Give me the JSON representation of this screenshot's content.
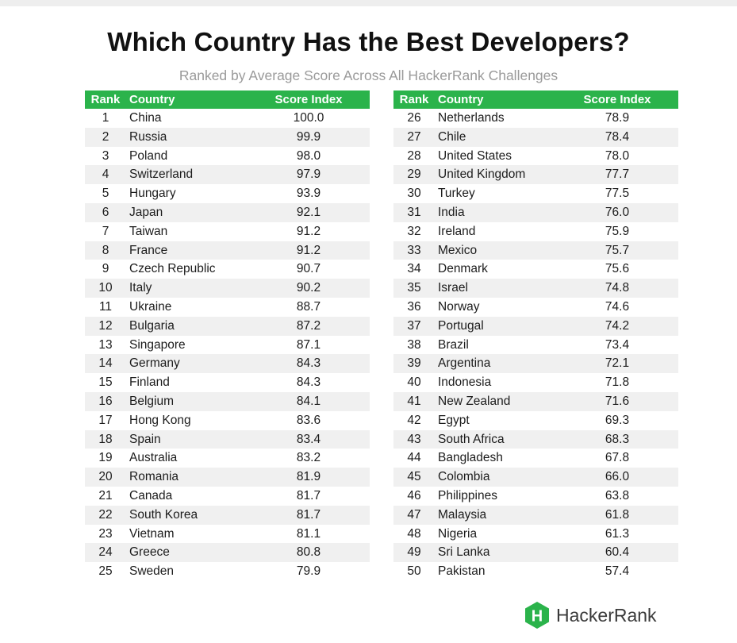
{
  "title": "Which Country Has the Best Developers?",
  "subtitle": "Ranked by Average Score Across All HackerRank Challenges",
  "brand": "HackerRank",
  "logo_letter": "H",
  "colors": {
    "header": "#2bb34b",
    "stripe": "#f0f0f0",
    "logo": "#2bb34b"
  },
  "chart_data": {
    "type": "table",
    "title": "Which Country Has the Best Developers?",
    "subtitle": "Ranked by Average Score Across All HackerRank Challenges",
    "columns": [
      "Rank",
      "Country",
      "Score Index"
    ],
    "left_rows": [
      [
        "1",
        "China",
        "100.0"
      ],
      [
        "2",
        "Russia",
        "99.9"
      ],
      [
        "3",
        "Poland",
        "98.0"
      ],
      [
        "4",
        "Switzerland",
        "97.9"
      ],
      [
        "5",
        "Hungary",
        "93.9"
      ],
      [
        "6",
        "Japan",
        "92.1"
      ],
      [
        "7",
        "Taiwan",
        "91.2"
      ],
      [
        "8",
        "France",
        "91.2"
      ],
      [
        "9",
        "Czech Republic",
        "90.7"
      ],
      [
        "10",
        "Italy",
        "90.2"
      ],
      [
        "11",
        "Ukraine",
        "88.7"
      ],
      [
        "12",
        "Bulgaria",
        "87.2"
      ],
      [
        "13",
        "Singapore",
        "87.1"
      ],
      [
        "14",
        "Germany",
        "84.3"
      ],
      [
        "15",
        "Finland",
        "84.3"
      ],
      [
        "16",
        "Belgium",
        "84.1"
      ],
      [
        "17",
        "Hong Kong",
        "83.6"
      ],
      [
        "18",
        "Spain",
        "83.4"
      ],
      [
        "19",
        "Australia",
        "83.2"
      ],
      [
        "20",
        "Romania",
        "81.9"
      ],
      [
        "21",
        "Canada",
        "81.7"
      ],
      [
        "22",
        "South Korea",
        "81.7"
      ],
      [
        "23",
        "Vietnam",
        "81.1"
      ],
      [
        "24",
        "Greece",
        "80.8"
      ],
      [
        "25",
        "Sweden",
        "79.9"
      ]
    ],
    "right_rows": [
      [
        "26",
        "Netherlands",
        "78.9"
      ],
      [
        "27",
        "Chile",
        "78.4"
      ],
      [
        "28",
        "United States",
        "78.0"
      ],
      [
        "29",
        "United Kingdom",
        "77.7"
      ],
      [
        "30",
        "Turkey",
        "77.5"
      ],
      [
        "31",
        "India",
        "76.0"
      ],
      [
        "32",
        "Ireland",
        "75.9"
      ],
      [
        "33",
        "Mexico",
        "75.7"
      ],
      [
        "34",
        "Denmark",
        "75.6"
      ],
      [
        "35",
        "Israel",
        "74.8"
      ],
      [
        "36",
        "Norway",
        "74.6"
      ],
      [
        "37",
        "Portugal",
        "74.2"
      ],
      [
        "38",
        "Brazil",
        "73.4"
      ],
      [
        "39",
        "Argentina",
        "72.1"
      ],
      [
        "40",
        "Indonesia",
        "71.8"
      ],
      [
        "41",
        "New Zealand",
        "71.6"
      ],
      [
        "42",
        "Egypt",
        "69.3"
      ],
      [
        "43",
        "South Africa",
        "68.3"
      ],
      [
        "44",
        "Bangladesh",
        "67.8"
      ],
      [
        "45",
        "Colombia",
        "66.0"
      ],
      [
        "46",
        "Philippines",
        "63.8"
      ],
      [
        "47",
        "Malaysia",
        "61.8"
      ],
      [
        "48",
        "Nigeria",
        "61.3"
      ],
      [
        "49",
        "Sri Lanka",
        "60.4"
      ],
      [
        "50",
        "Pakistan",
        "57.4"
      ]
    ]
  }
}
